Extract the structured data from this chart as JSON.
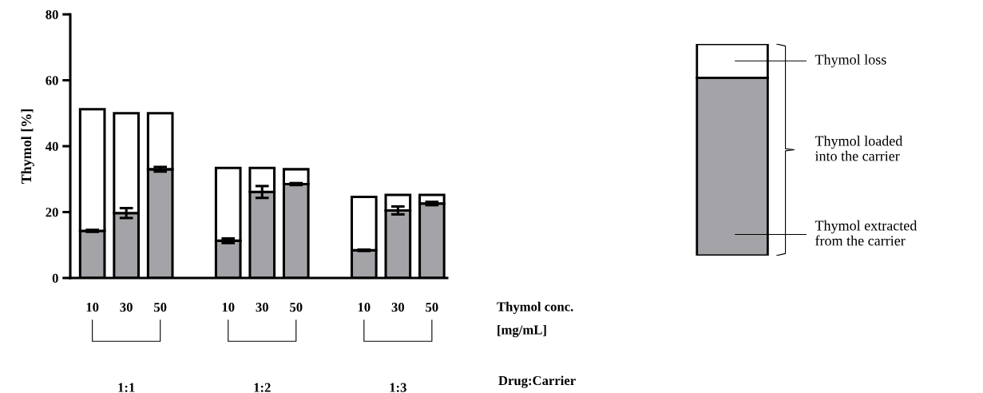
{
  "chart_data": {
    "type": "bar",
    "stacked": true,
    "ylabel": "Thymol [%]",
    "xlabel": "Thymol conc.\n[mg/mL]",
    "categories": [
      "10",
      "30",
      "50",
      null,
      "10",
      "30",
      "50",
      null,
      "10",
      "30",
      "50"
    ],
    "series": [
      {
        "name": "Thymol extracted\nfrom the carrier",
        "color": "#a4a3a7",
        "values": [
          14.3,
          19.7,
          33.0,
          null,
          11.3,
          26.1,
          28.5,
          null,
          8.4,
          20.5,
          22.6
        ],
        "errors": [
          0.3,
          1.5,
          0.7,
          null,
          0.7,
          1.8,
          0.3,
          null,
          0.2,
          1.2,
          0.5
        ]
      },
      {
        "name": "Thymol loss",
        "color": "#ffffff",
        "values": [
          36.9,
          30.3,
          17.0,
          null,
          22.1,
          7.3,
          4.5,
          null,
          16.2,
          4.7,
          2.6
        ]
      }
    ],
    "annotations": [
      "1:1",
      "1:2",
      "1:3",
      "Drug:Carrier",
      "Thymol loaded\ninto the carrier"
    ],
    "ylim": [
      0,
      80
    ],
    "yticks": [
      0,
      20,
      40,
      60,
      80
    ],
    "grid": false,
    "legend": "right"
  }
}
